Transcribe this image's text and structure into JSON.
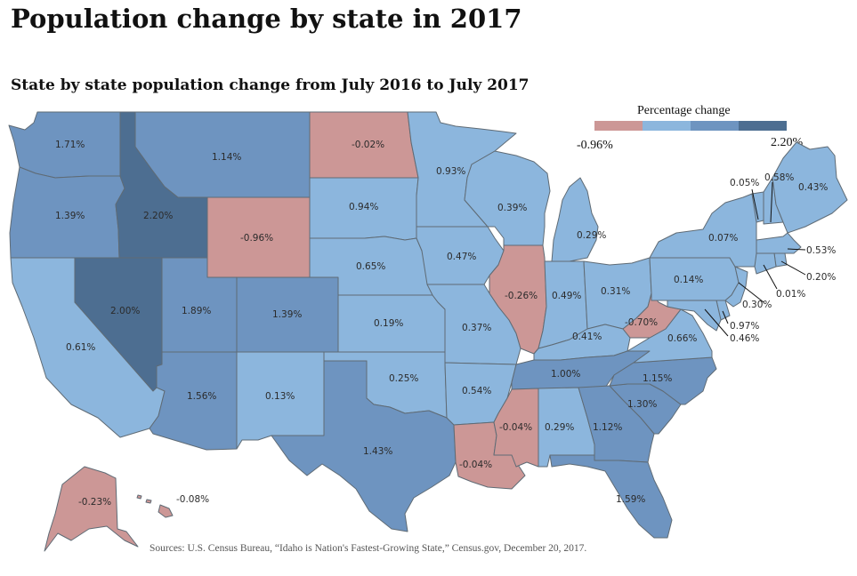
{
  "title": "Population change by state in 2017",
  "subtitle": "State by state population change from July 2016 to July 2017",
  "source": "Sources: U.S. Census Bureau, “Idaho is Nation's Fastest-Growing State,” Census.gov, December 20, 2017.",
  "legend": {
    "title": "Percentage change",
    "min_label": "-0.96%",
    "max_label": "2.20%",
    "bins": [
      "#cc9796",
      "#8cb6dd",
      "#6e94c0",
      "#4d6e91"
    ]
  },
  "colors": {
    "negative": "#cc9796",
    "low": "#8cb6dd",
    "mid": "#6e94c0",
    "high": "#4d6e91",
    "border": "#5f6b75"
  },
  "states": [
    {
      "id": "WA",
      "label": "1.71%",
      "bin": "mid"
    },
    {
      "id": "OR",
      "label": "1.39%",
      "bin": "mid"
    },
    {
      "id": "CA",
      "label": "0.61%",
      "bin": "low"
    },
    {
      "id": "ID",
      "label": "2.20%",
      "bin": "high"
    },
    {
      "id": "NV",
      "label": "2.00%",
      "bin": "high"
    },
    {
      "id": "MT",
      "label": "1.14%",
      "bin": "mid"
    },
    {
      "id": "WY",
      "label": "-0.96%",
      "bin": "negative"
    },
    {
      "id": "UT",
      "label": "1.89%",
      "bin": "mid"
    },
    {
      "id": "CO",
      "label": "1.39%",
      "bin": "mid"
    },
    {
      "id": "AZ",
      "label": "1.56%",
      "bin": "mid"
    },
    {
      "id": "NM",
      "label": "0.13%",
      "bin": "low"
    },
    {
      "id": "ND",
      "label": "-0.02%",
      "bin": "negative"
    },
    {
      "id": "SD",
      "label": "0.94%",
      "bin": "low"
    },
    {
      "id": "NE",
      "label": "0.65%",
      "bin": "low"
    },
    {
      "id": "KS",
      "label": "0.19%",
      "bin": "low"
    },
    {
      "id": "OK",
      "label": "0.25%",
      "bin": "low"
    },
    {
      "id": "TX",
      "label": "1.43%",
      "bin": "mid"
    },
    {
      "id": "MN",
      "label": "0.93%",
      "bin": "low"
    },
    {
      "id": "IA",
      "label": "0.47%",
      "bin": "low"
    },
    {
      "id": "MO",
      "label": "0.37%",
      "bin": "low"
    },
    {
      "id": "AR",
      "label": "0.54%",
      "bin": "low"
    },
    {
      "id": "LA",
      "label": "-0.04%",
      "bin": "negative"
    },
    {
      "id": "WI",
      "label": "0.39%",
      "bin": "low"
    },
    {
      "id": "IL",
      "label": "-0.26%",
      "bin": "negative"
    },
    {
      "id": "MI",
      "label": "0.29%",
      "bin": "low"
    },
    {
      "id": "IN",
      "label": "0.49%",
      "bin": "low"
    },
    {
      "id": "OH",
      "label": "0.31%",
      "bin": "low"
    },
    {
      "id": "KY",
      "label": "0.41%",
      "bin": "low"
    },
    {
      "id": "TN",
      "label": "1.00%",
      "bin": "mid"
    },
    {
      "id": "MS",
      "label": "-0.04%",
      "bin": "negative"
    },
    {
      "id": "AL",
      "label": "0.29%",
      "bin": "low"
    },
    {
      "id": "GA",
      "label": "1.12%",
      "bin": "mid"
    },
    {
      "id": "FL",
      "label": "1.59%",
      "bin": "mid"
    },
    {
      "id": "SC",
      "label": "1.30%",
      "bin": "mid"
    },
    {
      "id": "NC",
      "label": "1.15%",
      "bin": "mid"
    },
    {
      "id": "VA",
      "label": "0.66%",
      "bin": "low"
    },
    {
      "id": "WV",
      "label": "-0.70%",
      "bin": "negative"
    },
    {
      "id": "PA",
      "label": "0.14%",
      "bin": "low"
    },
    {
      "id": "NY",
      "label": "0.07%",
      "bin": "low"
    },
    {
      "id": "VT",
      "label": "0.05%",
      "bin": "low"
    },
    {
      "id": "NH",
      "label": "0.58%",
      "bin": "low"
    },
    {
      "id": "ME",
      "label": "0.43%",
      "bin": "low"
    },
    {
      "id": "MA",
      "label": "0.53%",
      "bin": "low"
    },
    {
      "id": "RI",
      "label": "0.20%",
      "bin": "low"
    },
    {
      "id": "CT",
      "label": "0.01%",
      "bin": "low"
    },
    {
      "id": "NJ",
      "label": "0.30%",
      "bin": "low"
    },
    {
      "id": "DE",
      "label": "0.97%",
      "bin": "low"
    },
    {
      "id": "MD",
      "label": "0.46%",
      "bin": "low"
    },
    {
      "id": "AK",
      "label": "-0.23%",
      "bin": "negative"
    },
    {
      "id": "HI",
      "label": "-0.08%",
      "bin": "negative"
    }
  ]
}
